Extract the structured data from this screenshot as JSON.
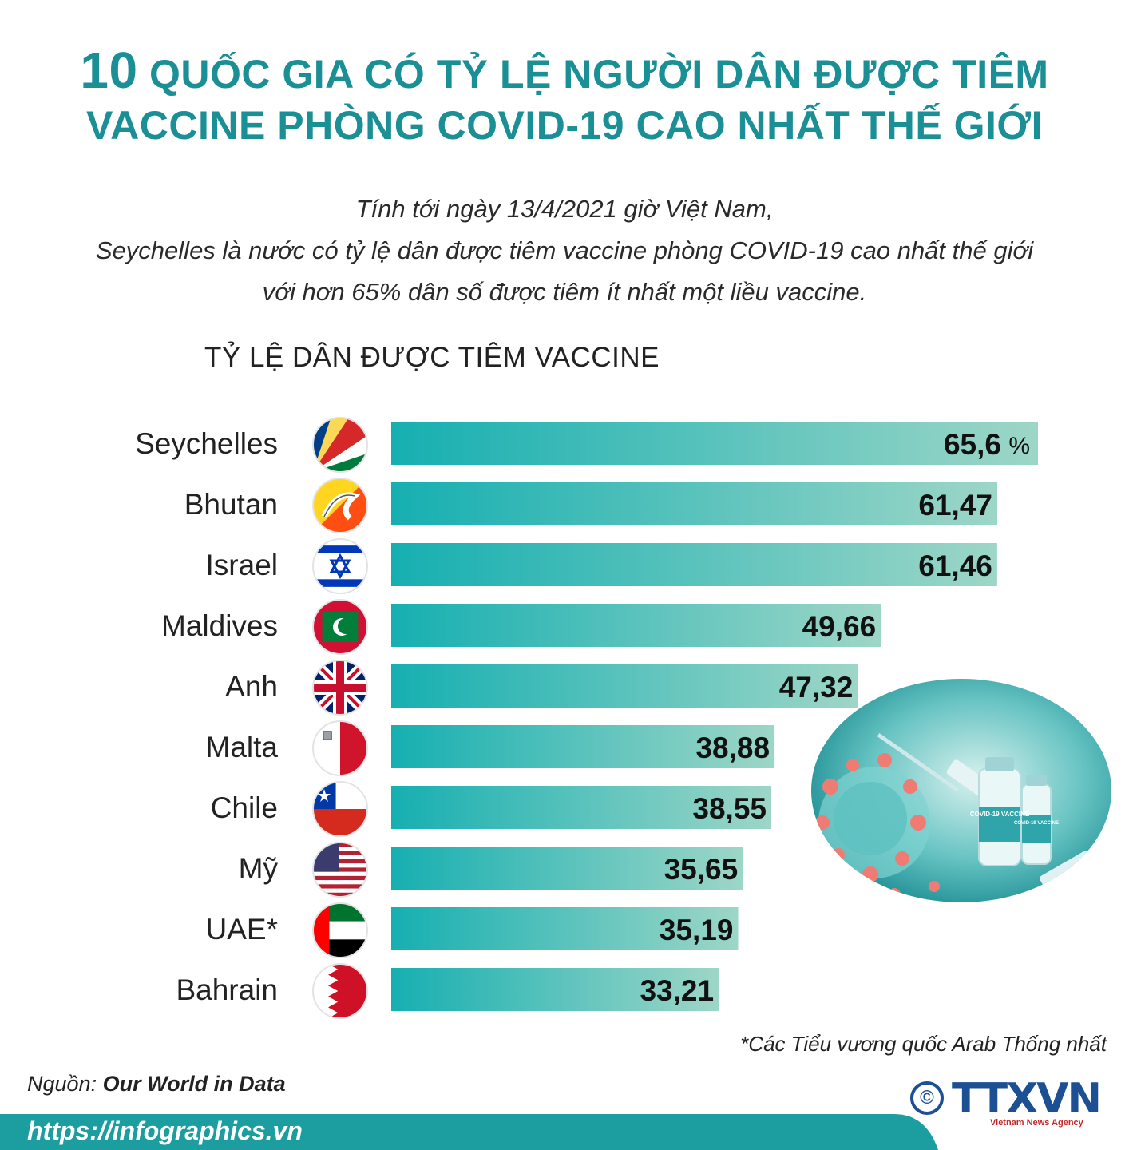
{
  "header": {
    "title_num": "10",
    "title_line1": "QUỐC GIA CÓ TỶ LỆ NGƯỜI DÂN ĐƯỢC TIÊM",
    "title_line2": "VACCINE PHÒNG COVID-19 CAO NHẤT THẾ GIỚI",
    "subtitle_line1": "Tính tới ngày 13/4/2021 giờ Việt Nam,",
    "subtitle_line2": "Seychelles là nước có tỷ lệ dân được tiêm vaccine phòng COVID-19 cao nhất thế giới",
    "subtitle_line3": "với hơn 65% dân số được tiêm ít nhất một liều vaccine."
  },
  "chart_data": {
    "type": "bar",
    "orientation": "horizontal",
    "title": "TỶ LỆ DÂN ĐƯỢC TIÊM VACCINE",
    "unit": "%",
    "categories": [
      "Seychelles",
      "Bhutan",
      "Israel",
      "Maldives",
      "Anh",
      "Malta",
      "Chile",
      "Mỹ",
      "UAE*",
      "Bahrain"
    ],
    "values": [
      65.6,
      61.47,
      61.46,
      49.66,
      47.32,
      38.88,
      38.55,
      35.65,
      35.19,
      33.21
    ],
    "value_labels": [
      "65,6",
      "61,47",
      "61,46",
      "49,66",
      "47,32",
      "38,88",
      "38,55",
      "35,65",
      "35,19",
      "33,21"
    ],
    "flags": [
      "flag-seychelles-icon",
      "flag-bhutan-icon",
      "flag-israel-icon",
      "flag-maldives-icon",
      "flag-uk-icon",
      "flag-malta-icon",
      "flag-chile-icon",
      "flag-usa-icon",
      "flag-uae-icon",
      "flag-bahrain-icon"
    ],
    "bar_color_start": "#16afb1",
    "bar_color_end": "#9dd6c7",
    "grid": false,
    "legend": "none"
  },
  "illustration": {
    "icon": "vaccine-vials-icon",
    "vial_label_1": "COVID-19 VACCINE",
    "vial_label_2": "COVID-19 VACCINE"
  },
  "footnote": "*Các Tiểu vương quốc Arab Thống nhất",
  "source": {
    "prefix": "Nguồn:",
    "name": "Our World in Data"
  },
  "footer": {
    "url": "https://infographics.vn",
    "band_color": "#1c9ea0",
    "logo_mark": "©",
    "logo_text": "TTXVN",
    "logo_sub": "Vietnam News Agency"
  },
  "colors": {
    "title": "#1a8f95",
    "text": "#222222"
  }
}
